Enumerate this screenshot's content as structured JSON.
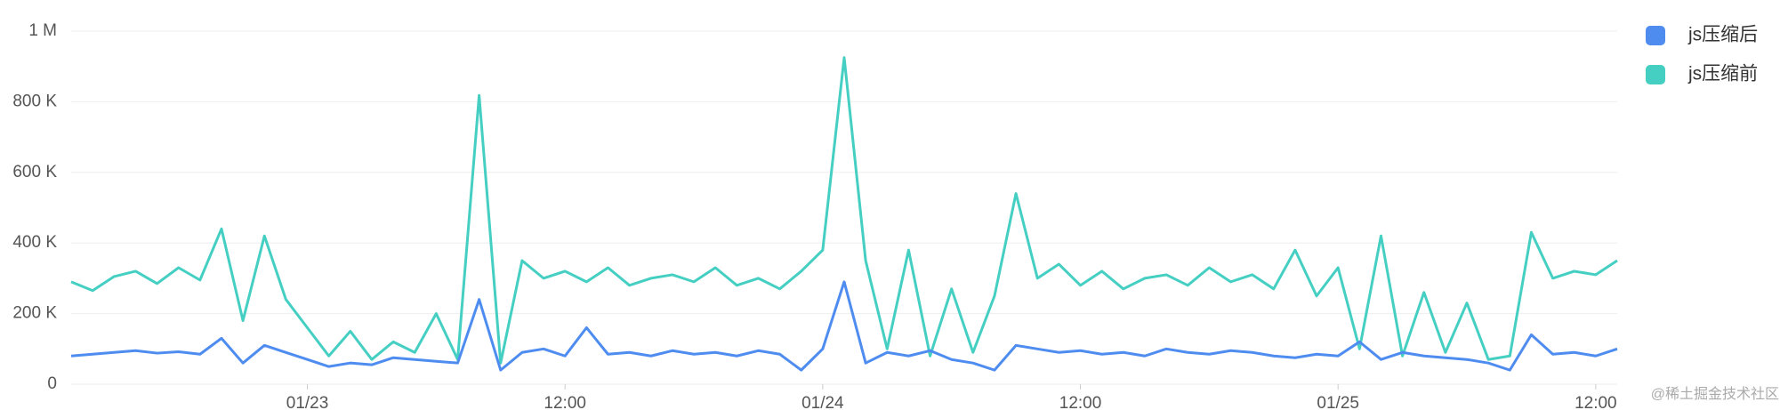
{
  "chart_data": {
    "type": "line",
    "x": [
      -11,
      -10,
      -9,
      -8,
      -7,
      -6,
      -5,
      -4,
      -3,
      -2,
      -1,
      0,
      1,
      2,
      3,
      4,
      5,
      6,
      7,
      8,
      9,
      10,
      11,
      12,
      13,
      14,
      15,
      16,
      17,
      18,
      19,
      20,
      21,
      22,
      23,
      24,
      25,
      26,
      27,
      28,
      29,
      30,
      31,
      32,
      33,
      34,
      35,
      36,
      37,
      38,
      39,
      40,
      41,
      42,
      43,
      44,
      45,
      46,
      47,
      48,
      49,
      50,
      51,
      52,
      53,
      54,
      55,
      56,
      57,
      58,
      59,
      60,
      61
    ],
    "xlim": [
      -11,
      61
    ],
    "xticks": [
      {
        "value": 0,
        "label": "01/23"
      },
      {
        "value": 12,
        "label": "12:00"
      },
      {
        "value": 24,
        "label": "01/24"
      },
      {
        "value": 36,
        "label": "12:00"
      },
      {
        "value": 48,
        "label": "01/25"
      },
      {
        "value": 60,
        "label": "12:00"
      }
    ],
    "ylim": [
      0,
      1000000
    ],
    "yticks": [
      0,
      {
        "value": 200000,
        "label": "200 K"
      },
      {
        "value": 400000,
        "label": "400 K"
      },
      {
        "value": 600000,
        "label": "600 K"
      },
      {
        "value": 800000,
        "label": "800 K"
      },
      {
        "value": 1000000,
        "label": "1 M"
      }
    ],
    "grid": true,
    "legend": "right",
    "series": [
      {
        "name": "js压缩后",
        "color": "#4e8cf0",
        "values": [
          80000,
          85000,
          90000,
          95000,
          88000,
          92000,
          85000,
          130000,
          60000,
          110000,
          90000,
          70000,
          50000,
          60000,
          55000,
          75000,
          70000,
          65000,
          60000,
          240000,
          40000,
          90000,
          100000,
          80000,
          160000,
          85000,
          90000,
          80000,
          95000,
          85000,
          90000,
          80000,
          95000,
          85000,
          40000,
          100000,
          290000,
          60000,
          90000,
          80000,
          95000,
          70000,
          60000,
          40000,
          110000,
          100000,
          90000,
          95000,
          85000,
          90000,
          80000,
          100000,
          90000,
          85000,
          95000,
          90000,
          80000,
          75000,
          85000,
          80000,
          120000,
          70000,
          90000,
          80000,
          75000,
          70000,
          60000,
          40000,
          140000,
          85000,
          90000,
          80000,
          100000
        ]
      },
      {
        "name": "js压缩前",
        "color": "#45cfc3",
        "values": [
          290000,
          265000,
          305000,
          320000,
          285000,
          330000,
          295000,
          440000,
          180000,
          420000,
          240000,
          160000,
          80000,
          150000,
          70000,
          120000,
          90000,
          200000,
          70000,
          818000,
          60000,
          350000,
          300000,
          320000,
          290000,
          330000,
          280000,
          300000,
          310000,
          290000,
          330000,
          280000,
          300000,
          270000,
          320000,
          380000,
          925000,
          350000,
          100000,
          380000,
          80000,
          270000,
          90000,
          250000,
          540000,
          300000,
          340000,
          280000,
          320000,
          270000,
          300000,
          310000,
          280000,
          330000,
          290000,
          310000,
          270000,
          380000,
          250000,
          330000,
          100000,
          420000,
          80000,
          260000,
          90000,
          230000,
          70000,
          80000,
          430000,
          300000,
          320000,
          310000,
          350000
        ]
      }
    ],
    "annotations": [
      "@稀土掘金技术社区"
    ]
  }
}
